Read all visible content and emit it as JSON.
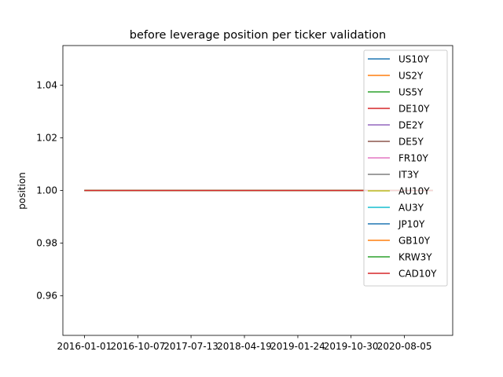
{
  "chart_data": {
    "type": "line",
    "title": "before leverage position per ticker validation",
    "xlabel": "",
    "ylabel": "position",
    "x_ticks": [
      "2016-01-01",
      "2016-10-07",
      "2017-07-13",
      "2018-04-19",
      "2019-01-24",
      "2019-10-30",
      "2020-08-05"
    ],
    "xlim": [
      "2015-09-10",
      "2021-04-15"
    ],
    "x_range": [
      "2016-01-01",
      "2021-01-01"
    ],
    "y_ticks": [
      0.96,
      0.98,
      1.0,
      1.02,
      1.04
    ],
    "y_tick_labels": [
      "0.96",
      "0.98",
      "1.00",
      "1.02",
      "1.04"
    ],
    "ylim": [
      0.945,
      1.055
    ],
    "grid": false,
    "legend_position": "top-right",
    "series": [
      {
        "name": "US10Y",
        "color": "#1f77b4",
        "value": 1.0
      },
      {
        "name": "US2Y",
        "color": "#ff7f0e",
        "value": 1.0
      },
      {
        "name": "US5Y",
        "color": "#2ca02c",
        "value": 1.0
      },
      {
        "name": "DE10Y",
        "color": "#d62728",
        "value": 1.0
      },
      {
        "name": "DE2Y",
        "color": "#9467bd",
        "value": 1.0
      },
      {
        "name": "DE5Y",
        "color": "#8c564b",
        "value": 1.0
      },
      {
        "name": "FR10Y",
        "color": "#e377c2",
        "value": 1.0
      },
      {
        "name": "IT3Y",
        "color": "#7f7f7f",
        "value": 1.0
      },
      {
        "name": "AU10Y",
        "color": "#bcbd22",
        "value": 1.0
      },
      {
        "name": "AU3Y",
        "color": "#17becf",
        "value": 1.0
      },
      {
        "name": "JP10Y",
        "color": "#1f77b4",
        "value": 1.0
      },
      {
        "name": "GB10Y",
        "color": "#ff7f0e",
        "value": 1.0
      },
      {
        "name": "KRW3Y",
        "color": "#2ca02c",
        "value": 1.0
      },
      {
        "name": "CAD10Y",
        "color": "#d62728",
        "value": 1.0
      }
    ]
  }
}
